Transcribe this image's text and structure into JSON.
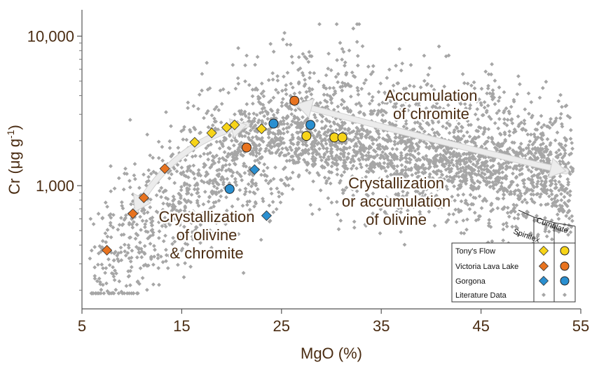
{
  "chart_data": {
    "type": "scatter",
    "title": "",
    "xlabel": "MgO (%)",
    "ylabel_main": "Cr (μg g",
    "ylabel_sup": "-1",
    "ylabel_close": ")",
    "xlim": [
      5,
      55
    ],
    "ylim": [
      150,
      15000
    ],
    "yscale": "log",
    "grid": false,
    "x_ticks": [
      5,
      15,
      25,
      35,
      45,
      55
    ],
    "x_tick_labels": [
      "5",
      "15",
      "25",
      "35",
      "45",
      "55"
    ],
    "y_ticks": [
      1000,
      10000
    ],
    "y_tick_labels": [
      "1,000",
      "10,000"
    ],
    "annotations": [
      {
        "lines": [
          "Accumulation",
          "of chromite"
        ],
        "x": 40,
        "y": 3700
      },
      {
        "lines": [
          "Crystallization",
          "or accumulation",
          "of olivine"
        ],
        "x": 36.5,
        "y": 960
      },
      {
        "lines": [
          "Crystallization",
          "of olivine",
          "& chromite"
        ],
        "x": 17.5,
        "y": 570
      }
    ],
    "arrows": [
      {
        "from": [
          10.3,
          670
        ],
        "via": [
          15,
          1600
        ],
        "to": [
          21.5,
          2550
        ]
      },
      {
        "from": [
          26.5,
          3500
        ],
        "via": [
          42,
          1900
        ],
        "to": [
          53.5,
          1250
        ]
      }
    ],
    "legend": {
      "placement": "bottom-right",
      "column_headers": [
        "Spinifex",
        "Cumulate"
      ],
      "rows": [
        "Tony's Flow",
        "Victoria Lava Lake",
        "Gorgona",
        "Literature Data"
      ]
    },
    "colors": {
      "tonys_flow": "#f7d418",
      "victoria_lava_lake": "#e8731f",
      "gorgona": "#2a8fd0",
      "literature": "#a6a6a6",
      "text": "#4a2c12",
      "arrow": "#ececec"
    },
    "series": [
      {
        "name": "Tony's Flow",
        "marker": "diamond",
        "color": "#f7d418",
        "points": [
          [
            16.3,
            1950
          ],
          [
            18.0,
            2250
          ],
          [
            19.5,
            2450
          ],
          [
            20.3,
            2550
          ],
          [
            23.0,
            2400
          ]
        ]
      },
      {
        "name": "Tony's Flow",
        "marker": "circle",
        "color": "#f7d418",
        "points": [
          [
            27.5,
            2150
          ],
          [
            30.3,
            2100
          ],
          [
            31.1,
            2100
          ]
        ]
      },
      {
        "name": "Victoria Lava Lake",
        "marker": "diamond",
        "color": "#e8731f",
        "points": [
          [
            7.5,
            370
          ],
          [
            10.1,
            650
          ],
          [
            11.2,
            830
          ],
          [
            13.3,
            1300
          ]
        ]
      },
      {
        "name": "Victoria Lava Lake",
        "marker": "circle",
        "color": "#e8731f",
        "points": [
          [
            21.5,
            1800
          ],
          [
            26.3,
            3700
          ]
        ]
      },
      {
        "name": "Gorgona",
        "marker": "diamond",
        "color": "#2a8fd0",
        "points": [
          [
            22.3,
            1280
          ],
          [
            23.5,
            630
          ]
        ]
      },
      {
        "name": "Gorgona",
        "marker": "circle",
        "color": "#2a8fd0",
        "points": [
          [
            19.8,
            950
          ],
          [
            24.2,
            2600
          ],
          [
            27.9,
            2550
          ]
        ]
      },
      {
        "name": "Literature Data",
        "marker": "small-diamond",
        "color": "#a6a6a6",
        "generated": "dense cloud of ~2800 literature points spanning MgO 6–54 %, Cr ~180–12,000 μg g-1"
      }
    ]
  }
}
